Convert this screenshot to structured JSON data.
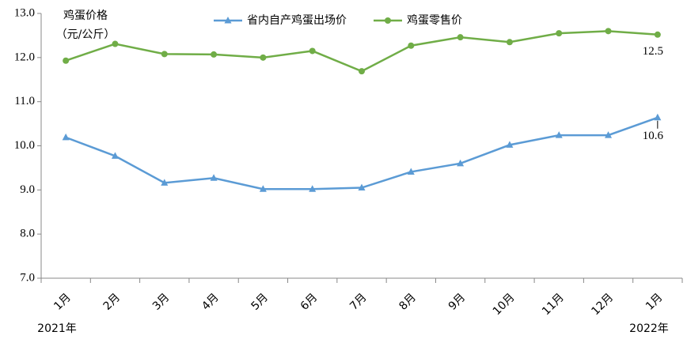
{
  "chart_data": {
    "type": "line",
    "y_label": [
      "鸡蛋价格",
      "（元/公斤）"
    ],
    "categories": [
      "1月",
      "2月",
      "3月",
      "4月",
      "5月",
      "6月",
      "7月",
      "8月",
      "9月",
      "10月",
      "11月",
      "12月",
      "1月"
    ],
    "year_labels": [
      "2021年",
      "2022年"
    ],
    "series": [
      {
        "name": "省内自产鸡蛋出场价",
        "color": "#5b9bd5",
        "marker": "triangle",
        "values": [
          10.19,
          9.77,
          9.16,
          9.27,
          9.02,
          9.02,
          9.05,
          9.41,
          9.6,
          10.02,
          10.24,
          10.24,
          10.64
        ],
        "value_labels": [
          null,
          null,
          null,
          null,
          null,
          null,
          null,
          null,
          null,
          null,
          null,
          null,
          "10.6"
        ]
      },
      {
        "name": "鸡蛋零售价",
        "color": "#70ad47",
        "marker": "circle",
        "values": [
          11.93,
          12.31,
          12.08,
          12.07,
          12.0,
          12.15,
          11.69,
          12.27,
          12.46,
          12.35,
          12.55,
          12.6,
          12.52
        ],
        "value_labels": [
          null,
          null,
          null,
          null,
          null,
          null,
          null,
          null,
          null,
          null,
          null,
          null,
          "12.5"
        ]
      }
    ],
    "ylim": [
      7,
      13
    ],
    "yticks": [
      {
        "value": 7,
        "label": "7.0"
      },
      {
        "value": 8,
        "label": "8.0"
      },
      {
        "value": 9,
        "label": "9.0"
      },
      {
        "value": 10,
        "label": "10.0"
      },
      {
        "value": 11,
        "label": "11.0"
      },
      {
        "value": 12,
        "label": "12.0"
      },
      {
        "value": 13,
        "label": "13.0"
      }
    ],
    "grid": false,
    "legend": "top"
  }
}
